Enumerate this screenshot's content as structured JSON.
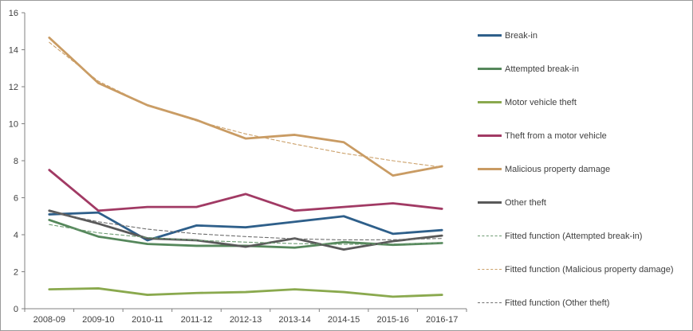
{
  "chart": {
    "y_axis": {
      "tick_labels": [
        "0",
        "2",
        "4",
        "6",
        "8",
        "10",
        "12",
        "14",
        "16"
      ],
      "min": 0,
      "max": 16,
      "step": 2
    },
    "axis_color": "#808080",
    "text_color": "#3f3f3f",
    "background": "#ffffff"
  },
  "chart_data": {
    "type": "line",
    "title": "",
    "xlabel": "",
    "ylabel": "",
    "ylim": [
      0,
      16
    ],
    "grid": false,
    "legend_position": "right",
    "categories": [
      "2008-09",
      "2009-10",
      "2010-11",
      "2011-12",
      "2012-13",
      "2013-14",
      "2014-15",
      "2015-16",
      "2016-17"
    ],
    "series": [
      {
        "name": "Break-in",
        "color": "#2E5F8A",
        "style": "solid",
        "values": [
          5.1,
          5.2,
          3.7,
          4.5,
          4.4,
          4.7,
          5.0,
          4.05,
          4.25
        ]
      },
      {
        "name": "Attempted break-in",
        "color": "#55875B",
        "style": "solid",
        "values": [
          4.8,
          3.9,
          3.5,
          3.4,
          3.4,
          3.3,
          3.6,
          3.45,
          3.55
        ]
      },
      {
        "name": "Motor vehicle theft",
        "color": "#8AA94E",
        "style": "solid",
        "values": [
          1.05,
          1.1,
          0.75,
          0.85,
          0.9,
          1.05,
          0.9,
          0.65,
          0.75
        ]
      },
      {
        "name": "Theft from a motor vehicle",
        "color": "#A13A64",
        "style": "solid",
        "values": [
          7.5,
          5.3,
          5.5,
          5.5,
          6.2,
          5.3,
          5.5,
          5.7,
          5.4
        ]
      },
      {
        "name": "Malicious property damage",
        "color": "#C99B63",
        "style": "solid",
        "values": [
          14.65,
          12.2,
          11.0,
          10.2,
          9.2,
          9.4,
          9.0,
          7.2,
          7.7
        ]
      },
      {
        "name": "Other theft",
        "color": "#595959",
        "style": "solid",
        "values": [
          5.3,
          4.6,
          3.8,
          3.7,
          3.35,
          3.8,
          3.2,
          3.65,
          3.95
        ]
      },
      {
        "name": "Fitted function (Attempted break-in)",
        "color": "#6B9A70",
        "style": "dashed",
        "values": [
          4.55,
          4.1,
          3.85,
          3.7,
          3.6,
          3.52,
          3.48,
          3.5,
          3.55
        ]
      },
      {
        "name": "Fitted function (Malicious property damage)",
        "color": "#CBA069",
        "style": "dashed",
        "values": [
          14.4,
          12.3,
          11.0,
          10.15,
          9.45,
          8.9,
          8.4,
          8.0,
          7.65
        ]
      },
      {
        "name": "Fitted function (Other theft)",
        "color": "#6E6E6E",
        "style": "dashed",
        "values": [
          5.25,
          4.7,
          4.3,
          4.05,
          3.9,
          3.78,
          3.72,
          3.73,
          3.8
        ]
      }
    ]
  }
}
